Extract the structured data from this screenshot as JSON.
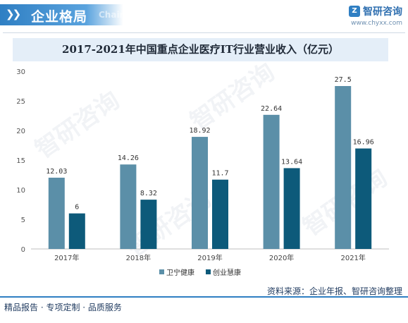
{
  "header": {
    "title": "企业格局",
    "subtitle": "Chain",
    "brand_name": "智研咨询",
    "brand_url": "www.chyxx.com"
  },
  "watermark": "智研咨询",
  "footer": {
    "left": "精品报告 · 专项定制 · 品质服务",
    "source": "资料来源：企业年报、智研咨询整理"
  },
  "colors": {
    "series1": "#5b8fa8",
    "series2": "#0d5a7a",
    "accent": "#2f7fc3"
  },
  "chart_data": {
    "type": "bar",
    "title": "2017-2021年中国重点企业医疗IT行业营业收入（亿元）",
    "categories": [
      "2017年",
      "2018年",
      "2019年",
      "2020年",
      "2021年"
    ],
    "series": [
      {
        "name": "卫宁健康",
        "values": [
          12.03,
          14.26,
          18.92,
          22.64,
          27.5
        ],
        "labels": [
          "12.03",
          "14.26",
          "18.92",
          "22.64",
          "27.5"
        ]
      },
      {
        "name": "创业慧康",
        "values": [
          6,
          8.32,
          11.7,
          13.64,
          16.96
        ],
        "labels": [
          "6",
          "8.32",
          "11.7",
          "13.64",
          "16.96"
        ]
      }
    ],
    "yticks": [
      "0",
      "5",
      "10",
      "15",
      "20",
      "25",
      "30"
    ],
    "ylim": [
      0,
      30
    ],
    "grid": false,
    "legend": "bottom-center"
  }
}
